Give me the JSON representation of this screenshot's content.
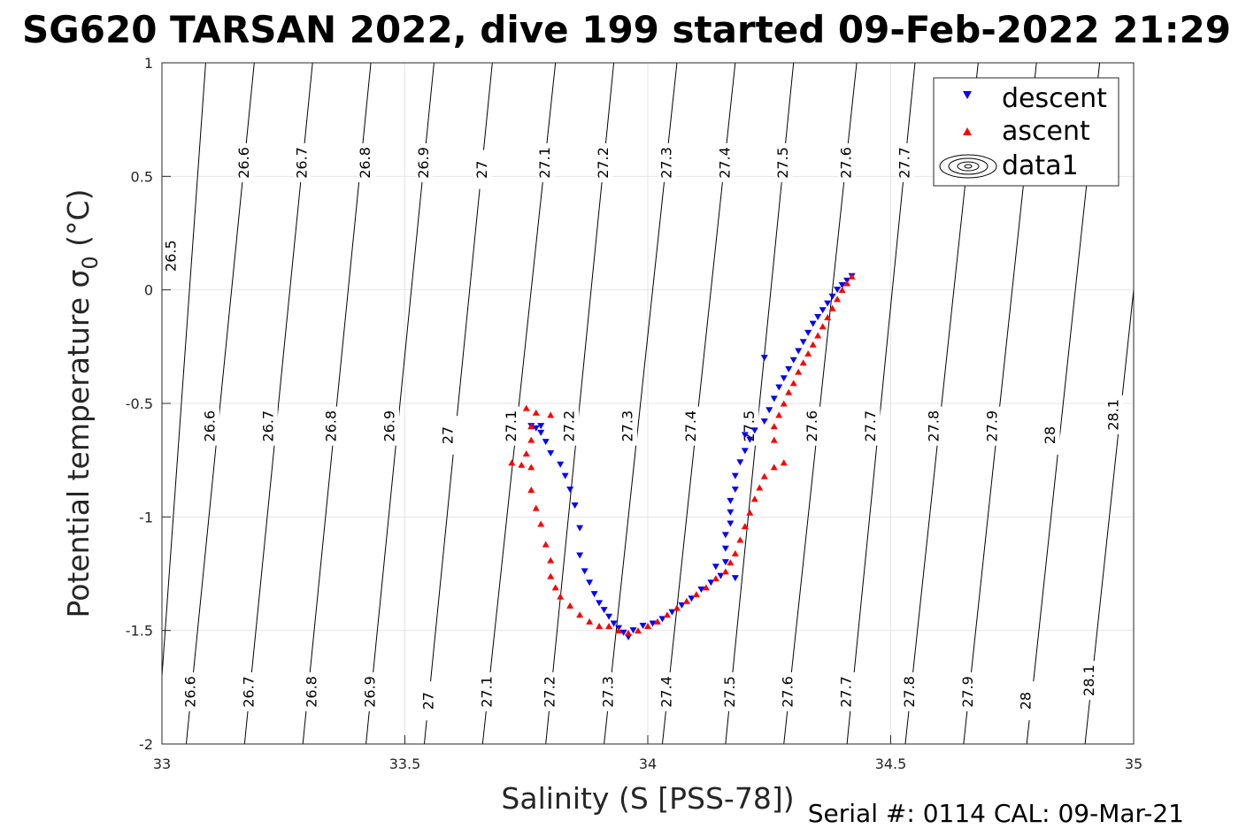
{
  "chart_data": {
    "type": "scatter",
    "title": "SG620 TARSAN 2022, dive 199 started 09-Feb-2022 21:29",
    "xlabel": "Salinity (S [PSS-78])",
    "ylabel": "Potential temperature σ",
    "ylabel_sub": "0",
    "ylabel_unit": " (°C)",
    "footer": "Serial #: 0114  CAL: 09-Mar-21",
    "xlim": [
      33,
      35
    ],
    "ylim": [
      -2,
      1
    ],
    "xticks": [
      33,
      33.5,
      34,
      34.5,
      35
    ],
    "xtick_labels": [
      "33",
      "33.5",
      "34",
      "34.5",
      "35"
    ],
    "yticks": [
      1,
      0.5,
      0,
      -0.5,
      -1,
      -1.5,
      -2
    ],
    "ytick_labels": [
      "1",
      "0.5",
      "0",
      "-0.5",
      "-1",
      "-1.5",
      "-2"
    ],
    "grid": true,
    "legend_position": "top-right",
    "legend": [
      "descent",
      "ascent",
      "data1"
    ],
    "colors": {
      "descent": "#0000ff",
      "ascent": "#ff0000",
      "contour": "#000000",
      "grid": "#e6e6e6"
    },
    "isopycnals": {
      "levels": [
        "26.5",
        "26.6",
        "26.7",
        "26.8",
        "26.9",
        "27",
        "27.1",
        "27.2",
        "27.3",
        "27.4",
        "27.5",
        "27.6",
        "27.7",
        "27.8",
        "27.9",
        "28",
        "28.1"
      ],
      "lines": [
        {
          "level": "26.5",
          "x": [
            32.99,
            33.09
          ]
        },
        {
          "level": "26.6",
          "x": [
            33.05,
            33.19
          ]
        },
        {
          "level": "26.7",
          "x": [
            33.17,
            33.31
          ]
        },
        {
          "level": "26.8",
          "x": [
            33.29,
            33.43
          ]
        },
        {
          "level": "26.9",
          "x": [
            33.42,
            33.56
          ]
        },
        {
          "level": "27",
          "x": [
            33.54,
            33.68
          ]
        },
        {
          "level": "27.1",
          "x": [
            33.66,
            33.81
          ]
        },
        {
          "level": "27.2",
          "x": [
            33.79,
            33.93
          ]
        },
        {
          "level": "27.3",
          "x": [
            33.91,
            34.06
          ]
        },
        {
          "level": "27.4",
          "x": [
            34.03,
            34.18
          ]
        },
        {
          "level": "27.5",
          "x": [
            34.16,
            34.3
          ]
        },
        {
          "level": "27.6",
          "x": [
            34.28,
            34.43
          ]
        },
        {
          "level": "27.7",
          "x": [
            34.41,
            34.55
          ]
        },
        {
          "level": "27.8",
          "x": [
            34.53,
            34.68
          ]
        },
        {
          "level": "27.9",
          "x": [
            34.65,
            34.8
          ]
        },
        {
          "level": "28",
          "x": [
            34.78,
            34.93
          ]
        },
        {
          "level": "28.1",
          "x": [
            34.9,
            35.05
          ]
        }
      ],
      "labels": [
        {
          "t": "26.5",
          "x": 33.02,
          "y": 0.15
        },
        {
          "t": "26.6",
          "x": 33.17,
          "y": 0.56
        },
        {
          "t": "26.7",
          "x": 33.29,
          "y": 0.56
        },
        {
          "t": "26.8",
          "x": 33.42,
          "y": 0.56
        },
        {
          "t": "26.9",
          "x": 33.54,
          "y": 0.56
        },
        {
          "t": "27",
          "x": 33.66,
          "y": 0.53
        },
        {
          "t": "27.1",
          "x": 33.79,
          "y": 0.56
        },
        {
          "t": "27.2",
          "x": 33.91,
          "y": 0.56
        },
        {
          "t": "27.3",
          "x": 34.04,
          "y": 0.56
        },
        {
          "t": "27.4",
          "x": 34.16,
          "y": 0.56
        },
        {
          "t": "27.5",
          "x": 34.28,
          "y": 0.56
        },
        {
          "t": "27.6",
          "x": 34.41,
          "y": 0.56
        },
        {
          "t": "27.7",
          "x": 34.53,
          "y": 0.56
        },
        {
          "t": "26.6",
          "x": 33.1,
          "y": -0.6
        },
        {
          "t": "26.7",
          "x": 33.22,
          "y": -0.6
        },
        {
          "t": "26.8",
          "x": 33.35,
          "y": -0.6
        },
        {
          "t": "26.9",
          "x": 33.47,
          "y": -0.6
        },
        {
          "t": "27",
          "x": 33.59,
          "y": -0.64
        },
        {
          "t": "27.1",
          "x": 33.72,
          "y": -0.6
        },
        {
          "t": "27.2",
          "x": 33.84,
          "y": -0.6
        },
        {
          "t": "27.3",
          "x": 33.96,
          "y": -0.6
        },
        {
          "t": "27.4",
          "x": 34.09,
          "y": -0.6
        },
        {
          "t": "27.5",
          "x": 34.21,
          "y": -0.6
        },
        {
          "t": "27.6",
          "x": 34.34,
          "y": -0.6
        },
        {
          "t": "27.7",
          "x": 34.46,
          "y": -0.6
        },
        {
          "t": "27.8",
          "x": 34.59,
          "y": -0.6
        },
        {
          "t": "27.9",
          "x": 34.71,
          "y": -0.6
        },
        {
          "t": "28",
          "x": 34.83,
          "y": -0.64
        },
        {
          "t": "28.1",
          "x": 34.96,
          "y": -0.55
        },
        {
          "t": "26.6",
          "x": 33.06,
          "y": -1.77
        },
        {
          "t": "26.7",
          "x": 33.18,
          "y": -1.77
        },
        {
          "t": "26.8",
          "x": 33.31,
          "y": -1.77
        },
        {
          "t": "26.9",
          "x": 33.43,
          "y": -1.77
        },
        {
          "t": "27",
          "x": 33.55,
          "y": -1.81
        },
        {
          "t": "27.1",
          "x": 33.67,
          "y": -1.77
        },
        {
          "t": "27.2",
          "x": 33.8,
          "y": -1.77
        },
        {
          "t": "27.3",
          "x": 33.92,
          "y": -1.77
        },
        {
          "t": "27.4",
          "x": 34.04,
          "y": -1.77
        },
        {
          "t": "27.5",
          "x": 34.17,
          "y": -1.77
        },
        {
          "t": "27.6",
          "x": 34.29,
          "y": -1.77
        },
        {
          "t": "27.7",
          "x": 34.41,
          "y": -1.77
        },
        {
          "t": "27.8",
          "x": 34.54,
          "y": -1.77
        },
        {
          "t": "27.9",
          "x": 34.66,
          "y": -1.77
        },
        {
          "t": "28",
          "x": 34.78,
          "y": -1.81
        },
        {
          "t": "28.1",
          "x": 34.91,
          "y": -1.72
        }
      ]
    },
    "series": [
      {
        "name": "descent",
        "marker": "triangle-down",
        "points": [
          [
            34.42,
            0.06
          ],
          [
            34.41,
            0.04
          ],
          [
            34.4,
            0.02
          ],
          [
            34.39,
            0.0
          ],
          [
            34.38,
            -0.03
          ],
          [
            34.37,
            -0.06
          ],
          [
            34.36,
            -0.09
          ],
          [
            34.35,
            -0.12
          ],
          [
            34.34,
            -0.15
          ],
          [
            34.33,
            -0.19
          ],
          [
            34.32,
            -0.23
          ],
          [
            34.31,
            -0.27
          ],
          [
            34.3,
            -0.31
          ],
          [
            34.29,
            -0.35
          ],
          [
            34.28,
            -0.39
          ],
          [
            34.27,
            -0.43
          ],
          [
            34.26,
            -0.48
          ],
          [
            34.25,
            -0.53
          ],
          [
            34.24,
            -0.58
          ],
          [
            34.22,
            -0.62
          ],
          [
            34.21,
            -0.66
          ],
          [
            34.2,
            -0.71
          ],
          [
            34.19,
            -0.76
          ],
          [
            34.18,
            -0.82
          ],
          [
            34.18,
            -0.88
          ],
          [
            34.17,
            -0.93
          ],
          [
            34.17,
            -0.98
          ],
          [
            34.17,
            -1.03
          ],
          [
            34.16,
            -1.08
          ],
          [
            34.16,
            -1.14
          ],
          [
            34.16,
            -1.2
          ],
          [
            34.15,
            -1.26
          ],
          [
            34.13,
            -1.29
          ],
          [
            34.11,
            -1.32
          ],
          [
            34.09,
            -1.36
          ],
          [
            34.07,
            -1.39
          ],
          [
            34.05,
            -1.42
          ],
          [
            34.03,
            -1.45
          ],
          [
            34.01,
            -1.47
          ],
          [
            33.99,
            -1.48
          ],
          [
            33.97,
            -1.5
          ],
          [
            33.96,
            -1.53
          ],
          [
            33.95,
            -1.51
          ],
          [
            33.94,
            -1.49
          ],
          [
            33.93,
            -1.47
          ],
          [
            33.92,
            -1.44
          ],
          [
            33.91,
            -1.41
          ],
          [
            33.9,
            -1.38
          ],
          [
            33.89,
            -1.34
          ],
          [
            33.88,
            -1.29
          ],
          [
            33.87,
            -1.24
          ],
          [
            33.86,
            -1.17
          ],
          [
            33.86,
            -1.05
          ],
          [
            33.85,
            -0.95
          ],
          [
            33.84,
            -0.88
          ],
          [
            33.83,
            -0.82
          ],
          [
            33.82,
            -0.77
          ],
          [
            33.8,
            -0.72
          ],
          [
            33.79,
            -0.67
          ],
          [
            33.78,
            -0.63
          ],
          [
            33.77,
            -0.61
          ],
          [
            33.76,
            -0.6
          ],
          [
            33.78,
            -0.6
          ],
          [
            34.18,
            -1.27
          ],
          [
            34.14,
            -1.22
          ],
          [
            34.2,
            -0.64
          ],
          [
            34.24,
            -0.3
          ]
        ]
      },
      {
        "name": "ascent",
        "marker": "triangle-up",
        "points": [
          [
            34.42,
            0.06
          ],
          [
            34.41,
            0.03
          ],
          [
            34.4,
            0.0
          ],
          [
            34.39,
            -0.04
          ],
          [
            34.38,
            -0.08
          ],
          [
            34.37,
            -0.12
          ],
          [
            34.36,
            -0.16
          ],
          [
            34.35,
            -0.2
          ],
          [
            34.34,
            -0.24
          ],
          [
            34.33,
            -0.28
          ],
          [
            34.32,
            -0.32
          ],
          [
            34.31,
            -0.36
          ],
          [
            34.3,
            -0.41
          ],
          [
            34.29,
            -0.45
          ],
          [
            34.28,
            -0.5
          ],
          [
            34.27,
            -0.55
          ],
          [
            34.26,
            -0.6
          ],
          [
            34.26,
            -0.66
          ],
          [
            34.28,
            -0.76
          ],
          [
            34.26,
            -0.78
          ],
          [
            34.24,
            -0.82
          ],
          [
            34.23,
            -0.87
          ],
          [
            34.22,
            -0.92
          ],
          [
            34.21,
            -0.98
          ],
          [
            34.2,
            -1.04
          ],
          [
            34.19,
            -1.1
          ],
          [
            34.18,
            -1.16
          ],
          [
            34.17,
            -1.2
          ],
          [
            34.16,
            -1.24
          ],
          [
            34.14,
            -1.27
          ],
          [
            34.12,
            -1.31
          ],
          [
            34.1,
            -1.34
          ],
          [
            34.08,
            -1.37
          ],
          [
            34.06,
            -1.4
          ],
          [
            34.04,
            -1.43
          ],
          [
            34.02,
            -1.46
          ],
          [
            34.0,
            -1.48
          ],
          [
            33.98,
            -1.5
          ],
          [
            33.96,
            -1.51
          ],
          [
            33.94,
            -1.5
          ],
          [
            33.92,
            -1.48
          ],
          [
            33.9,
            -1.48
          ],
          [
            33.88,
            -1.46
          ],
          [
            33.86,
            -1.43
          ],
          [
            33.84,
            -1.39
          ],
          [
            33.82,
            -1.35
          ],
          [
            33.81,
            -1.31
          ],
          [
            33.8,
            -1.26
          ],
          [
            33.8,
            -1.19
          ],
          [
            33.79,
            -1.12
          ],
          [
            33.78,
            -1.03
          ],
          [
            33.77,
            -0.96
          ],
          [
            33.76,
            -0.88
          ],
          [
            33.76,
            -0.78
          ],
          [
            33.75,
            -0.72
          ],
          [
            33.76,
            -0.66
          ],
          [
            33.76,
            -0.6
          ],
          [
            33.75,
            -0.52
          ],
          [
            33.77,
            -0.54
          ],
          [
            33.8,
            -0.55
          ],
          [
            33.74,
            -0.77
          ],
          [
            33.72,
            -0.76
          ]
        ]
      }
    ]
  }
}
